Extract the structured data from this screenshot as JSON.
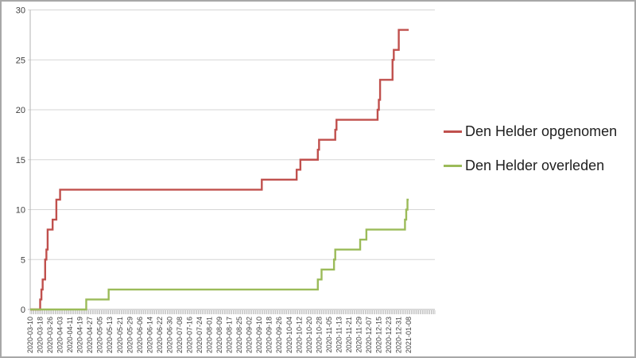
{
  "colors": {
    "series_red": "#c0504d",
    "series_green": "#9bbb59",
    "gridline": "#d6d6d6",
    "axis_line": "#b3b3b3",
    "tick_comb": "#a3a3a3",
    "tick_text": "#3f3f3f",
    "legend_text": "#1f1f1f",
    "frame_border": "#a8a8a8",
    "background": "#ffffff"
  },
  "chart_data": {
    "type": "line",
    "step_interpolation": true,
    "x_type": "date",
    "x_start": "2020-03-10",
    "x_end": "2021-01-08",
    "x_axis_overhang_days": 21,
    "ylim": [
      0,
      30
    ],
    "y_ticks": [
      0,
      5,
      10,
      15,
      20,
      25,
      30
    ],
    "grid": "horizontal",
    "legend_position": "right",
    "x_tick_labels": [
      "2020-03-10",
      "2020-03-18",
      "2020-03-26",
      "2020-04-03",
      "2020-04-11",
      "2020-04-19",
      "2020-04-27",
      "2020-05-05",
      "2020-05-13",
      "2020-05-21",
      "2020-05-29",
      "2020-06-06",
      "2020-06-14",
      "2020-06-22",
      "2020-06-30",
      "2020-07-08",
      "2020-07-16",
      "2020-07-24",
      "2020-08-01",
      "2020-08-09",
      "2020-08-17",
      "2020-08-25",
      "2020-09-02",
      "2020-09-10",
      "2020-09-18",
      "2020-09-26",
      "2020-10-04",
      "2020-10-12",
      "2020-10-20",
      "2020-10-28",
      "2020-11-05",
      "2020-11-13",
      "2020-11-21",
      "2020-11-29",
      "2020-12-07",
      "2020-12-15",
      "2020-12-23",
      "2020-12-31",
      "2021-01-08"
    ],
    "series": [
      {
        "name": "Den Helder opgenomen",
        "color": "#c0504d",
        "points": [
          [
            "2020-03-10",
            0
          ],
          [
            "2020-03-17",
            0
          ],
          [
            "2020-03-18",
            1
          ],
          [
            "2020-03-19",
            2
          ],
          [
            "2020-03-20",
            3
          ],
          [
            "2020-03-21",
            3
          ],
          [
            "2020-03-22",
            5
          ],
          [
            "2020-03-23",
            6
          ],
          [
            "2020-03-24",
            8
          ],
          [
            "2020-03-27",
            8
          ],
          [
            "2020-03-28",
            9
          ],
          [
            "2020-03-30",
            9
          ],
          [
            "2020-03-31",
            11
          ],
          [
            "2020-04-02",
            11
          ],
          [
            "2020-04-03",
            12
          ],
          [
            "2020-09-11",
            12
          ],
          [
            "2020-09-12",
            13
          ],
          [
            "2020-10-09",
            13
          ],
          [
            "2020-10-10",
            14
          ],
          [
            "2020-10-12",
            14
          ],
          [
            "2020-10-13",
            15
          ],
          [
            "2020-10-26",
            15
          ],
          [
            "2020-10-27",
            16
          ],
          [
            "2020-10-28",
            17
          ],
          [
            "2020-11-09",
            17
          ],
          [
            "2020-11-10",
            18
          ],
          [
            "2020-11-11",
            19
          ],
          [
            "2020-12-13",
            19
          ],
          [
            "2020-12-14",
            20
          ],
          [
            "2020-12-15",
            21
          ],
          [
            "2020-12-16",
            23
          ],
          [
            "2020-12-24",
            23
          ],
          [
            "2020-12-26",
            25
          ],
          [
            "2020-12-27",
            26
          ],
          [
            "2020-12-30",
            26
          ],
          [
            "2020-12-31",
            28
          ],
          [
            "2021-01-08",
            28
          ]
        ]
      },
      {
        "name": "Den Helder overleden",
        "color": "#9bbb59",
        "points": [
          [
            "2020-03-10",
            0
          ],
          [
            "2020-04-23",
            0
          ],
          [
            "2020-04-24",
            1
          ],
          [
            "2020-05-11",
            1
          ],
          [
            "2020-05-12",
            2
          ],
          [
            "2020-10-26",
            2
          ],
          [
            "2020-10-27",
            3
          ],
          [
            "2020-10-29",
            3
          ],
          [
            "2020-10-30",
            4
          ],
          [
            "2020-11-08",
            4
          ],
          [
            "2020-11-09",
            5
          ],
          [
            "2020-11-10",
            6
          ],
          [
            "2020-11-28",
            6
          ],
          [
            "2020-11-30",
            7
          ],
          [
            "2020-12-04",
            7
          ],
          [
            "2020-12-05",
            8
          ],
          [
            "2021-01-04",
            8
          ],
          [
            "2021-01-05",
            9
          ],
          [
            "2021-01-06",
            10
          ],
          [
            "2021-01-07",
            11
          ],
          [
            "2021-01-08",
            11
          ]
        ]
      }
    ]
  }
}
